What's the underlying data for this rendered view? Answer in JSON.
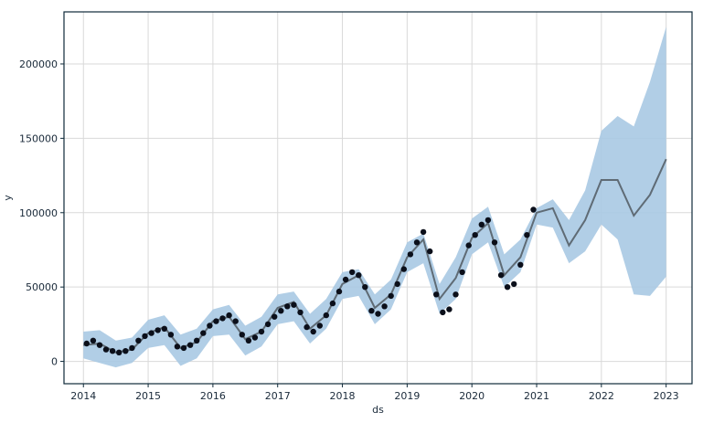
{
  "chart_data": {
    "type": "line",
    "title": "",
    "xlabel": "ds",
    "ylabel": "y",
    "x_range": [
      2013.7,
      2023.4
    ],
    "y_range": [
      -15000,
      235000
    ],
    "grid": true,
    "x_ticks": [
      "2014",
      "2015",
      "2016",
      "2017",
      "2018",
      "2019",
      "2020",
      "2021",
      "2022",
      "2023"
    ],
    "y_ticks": [
      "0",
      "50000",
      "100000",
      "150000",
      "200000"
    ],
    "colors": {
      "forecast_line": "#5f6b75",
      "uncertainty_band": "#a9c9e3",
      "observed_points": "#0b0f1a",
      "grid": "#d9d9d9",
      "axes": "#0f2a3a"
    },
    "series": [
      {
        "type": "band",
        "x": [
          2014.0,
          2014.25,
          2014.5,
          2014.75,
          2015.0,
          2015.25,
          2015.5,
          2015.75,
          2016.0,
          2016.25,
          2016.5,
          2016.75,
          2017.0,
          2017.25,
          2017.5,
          2017.75,
          2018.0,
          2018.25,
          2018.5,
          2018.75,
          2019.0,
          2019.25,
          2019.5,
          2019.75,
          2020.0,
          2020.25,
          2020.5,
          2020.75,
          2021.0,
          2021.25,
          2021.5,
          2021.75,
          2022.0,
          2022.25,
          2022.5,
          2022.75,
          2023.0
        ],
        "upper": [
          20000,
          21000,
          14000,
          16000,
          28000,
          31000,
          18000,
          22000,
          35000,
          38000,
          24000,
          30000,
          45000,
          47000,
          32000,
          42000,
          60000,
          62000,
          45000,
          55000,
          80000,
          86000,
          52000,
          70000,
          96000,
          104000,
          72000,
          82000,
          103000,
          109000,
          95000,
          115000,
          155000,
          165000,
          158000,
          188000,
          225000
        ],
        "lower": [
          2000,
          -1000,
          -4000,
          -1000,
          9000,
          11000,
          -3000,
          2000,
          17000,
          18000,
          4000,
          10000,
          25000,
          27000,
          12000,
          22000,
          42000,
          44000,
          25000,
          35000,
          60000,
          66000,
          32000,
          42000,
          72000,
          80000,
          50000,
          60000,
          92000,
          90000,
          66000,
          74000,
          92000,
          82000,
          45000,
          44000,
          57000
        ]
      },
      {
        "type": "line",
        "name": "",
        "x": [
          2014.0,
          2014.25,
          2014.5,
          2014.75,
          2015.0,
          2015.25,
          2015.5,
          2015.75,
          2016.0,
          2016.25,
          2016.5,
          2016.75,
          2017.0,
          2017.25,
          2017.5,
          2017.75,
          2018.0,
          2018.25,
          2018.5,
          2018.75,
          2019.0,
          2019.25,
          2019.5,
          2019.75,
          2020.0,
          2020.25,
          2020.5,
          2020.75,
          2021.0,
          2021.25,
          2021.5,
          2021.75,
          2022.0,
          2022.25,
          2022.5,
          2022.75,
          2023.0
        ],
        "values": [
          11000,
          12000,
          6000,
          8000,
          19000,
          23000,
          9000,
          13000,
          27000,
          30000,
          15000,
          20000,
          36000,
          40000,
          22000,
          31000,
          52000,
          58000,
          36000,
          45000,
          70000,
          82000,
          42000,
          56000,
          83000,
          93000,
          58000,
          70000,
          100000,
          103000,
          78000,
          95000,
          122000,
          122000,
          98000,
          112000,
          136000
        ]
      },
      {
        "type": "scatter",
        "name": "",
        "x": [
          2014.05,
          2014.15,
          2014.25,
          2014.35,
          2014.45,
          2014.55,
          2014.65,
          2014.75,
          2014.85,
          2014.95,
          2015.05,
          2015.15,
          2015.25,
          2015.35,
          2015.45,
          2015.55,
          2015.65,
          2015.75,
          2015.85,
          2015.95,
          2016.05,
          2016.15,
          2016.25,
          2016.35,
          2016.45,
          2016.55,
          2016.65,
          2016.75,
          2016.85,
          2016.95,
          2017.05,
          2017.15,
          2017.25,
          2017.35,
          2017.45,
          2017.55,
          2017.65,
          2017.75,
          2017.85,
          2017.95,
          2018.05,
          2018.15,
          2018.25,
          2018.35,
          2018.45,
          2018.55,
          2018.65,
          2018.75,
          2018.85,
          2018.95,
          2019.05,
          2019.15,
          2019.25,
          2019.35,
          2019.45,
          2019.55,
          2019.65,
          2019.75,
          2019.85,
          2019.95,
          2020.05,
          2020.15,
          2020.25,
          2020.35,
          2020.45,
          2020.55,
          2020.65,
          2020.75,
          2020.85,
          2020.95
        ],
        "values": [
          12000,
          14000,
          11000,
          8000,
          7000,
          6000,
          7000,
          9000,
          14000,
          17000,
          19000,
          21000,
          22000,
          18000,
          10000,
          9000,
          11000,
          14000,
          19000,
          24000,
          27000,
          29000,
          31000,
          27000,
          18000,
          14000,
          16000,
          20000,
          25000,
          30000,
          34000,
          37000,
          38000,
          33000,
          23000,
          20000,
          24000,
          31000,
          39000,
          47000,
          55000,
          60000,
          58000,
          50000,
          34000,
          32000,
          37000,
          44000,
          52000,
          62000,
          72000,
          80000,
          87000,
          74000,
          45000,
          33000,
          35000,
          45000,
          60000,
          78000,
          85000,
          92000,
          95000,
          80000,
          58000,
          50000,
          52000,
          65000,
          85000,
          102000
        ]
      }
    ]
  }
}
